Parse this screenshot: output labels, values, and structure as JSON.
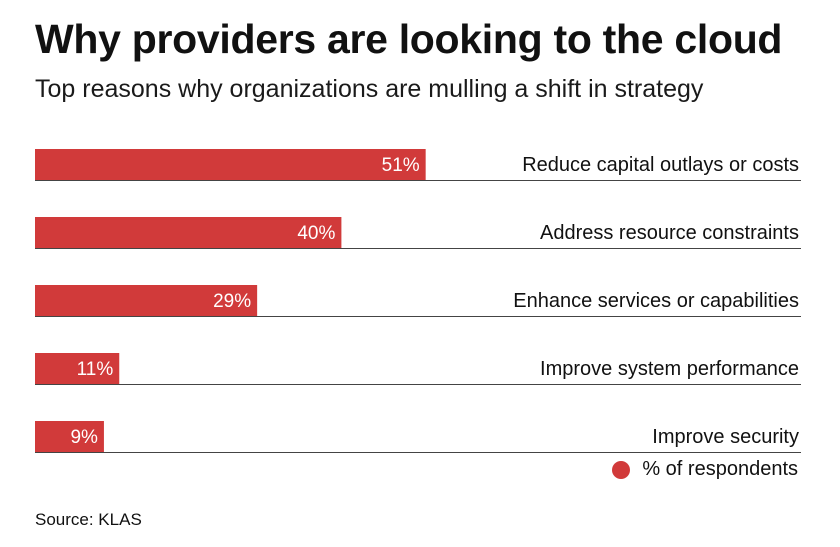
{
  "title": "Why providers are looking to the cloud",
  "subtitle": "Top reasons why organizations are mulling a shift in strategy",
  "source": "Source: KLAS",
  "colors": {
    "bar": "#d13a3a",
    "axis": "#444444",
    "value_text": "#ffffff"
  },
  "chart_data": {
    "type": "bar",
    "orientation": "horizontal",
    "categories": [
      "Reduce capital outlays or costs",
      "Address resource constraints",
      "Enhance services or capabilities",
      "Improve system performance",
      "Improve security"
    ],
    "values": [
      51,
      40,
      29,
      11,
      9
    ],
    "value_labels": [
      "51%",
      "40%",
      "29%",
      "11%",
      "9%"
    ],
    "legend": [
      {
        "label": "% of respondents",
        "color": "#d13a3a"
      }
    ],
    "legend_position": "bottom-right",
    "xlim": [
      0,
      100
    ],
    "grid": false
  }
}
